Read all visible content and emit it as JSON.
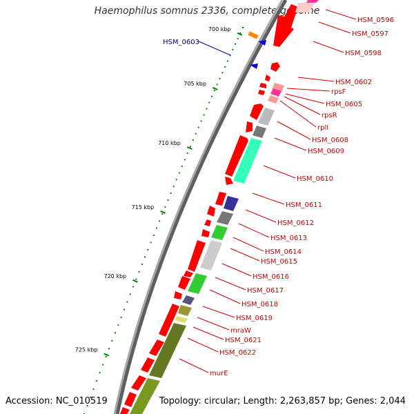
{
  "title": "Haemophilus somnus 2336, complete genome",
  "accession": "Accession: NC_010519",
  "summary": "Topology: circular; Length: 2,263,857 bp; Genes: 2,044",
  "colors": {
    "backbone": "#8a8a8a",
    "forward_gene": "#ff0000",
    "tick": "#008000",
    "label": "#cc0000",
    "special_label": "#000099"
  },
  "kbp_ticks": [
    {
      "label": "700 kbp"
    },
    {
      "label": "705 kbp"
    },
    {
      "label": "710 kbp"
    },
    {
      "label": "715 kbp"
    },
    {
      "label": "720 kbp"
    },
    {
      "label": "725 kbp"
    }
  ],
  "gene_labels": [
    {
      "name": "HSM_0596"
    },
    {
      "name": "HSM_0597"
    },
    {
      "name": "HSM_0598"
    },
    {
      "name": "HSM_0602"
    },
    {
      "name": "rpsF"
    },
    {
      "name": "HSM_0605"
    },
    {
      "name": "rpsR"
    },
    {
      "name": "rplI"
    },
    {
      "name": "HSM_0608"
    },
    {
      "name": "HSM_0609"
    },
    {
      "name": "HSM_0610"
    },
    {
      "name": "HSM_0611"
    },
    {
      "name": "HSM_0612"
    },
    {
      "name": "HSM_0613"
    },
    {
      "name": "HSM_0614"
    },
    {
      "name": "HSM_0615"
    },
    {
      "name": "HSM_0616"
    },
    {
      "name": "HSM_0617"
    },
    {
      "name": "HSM_0618"
    },
    {
      "name": "HSM_0619"
    },
    {
      "name": "mraW"
    },
    {
      "name": "HSM_0621"
    },
    {
      "name": "HSM_0622"
    },
    {
      "name": "murE"
    }
  ],
  "special_label": {
    "name": "HSM_0603"
  }
}
